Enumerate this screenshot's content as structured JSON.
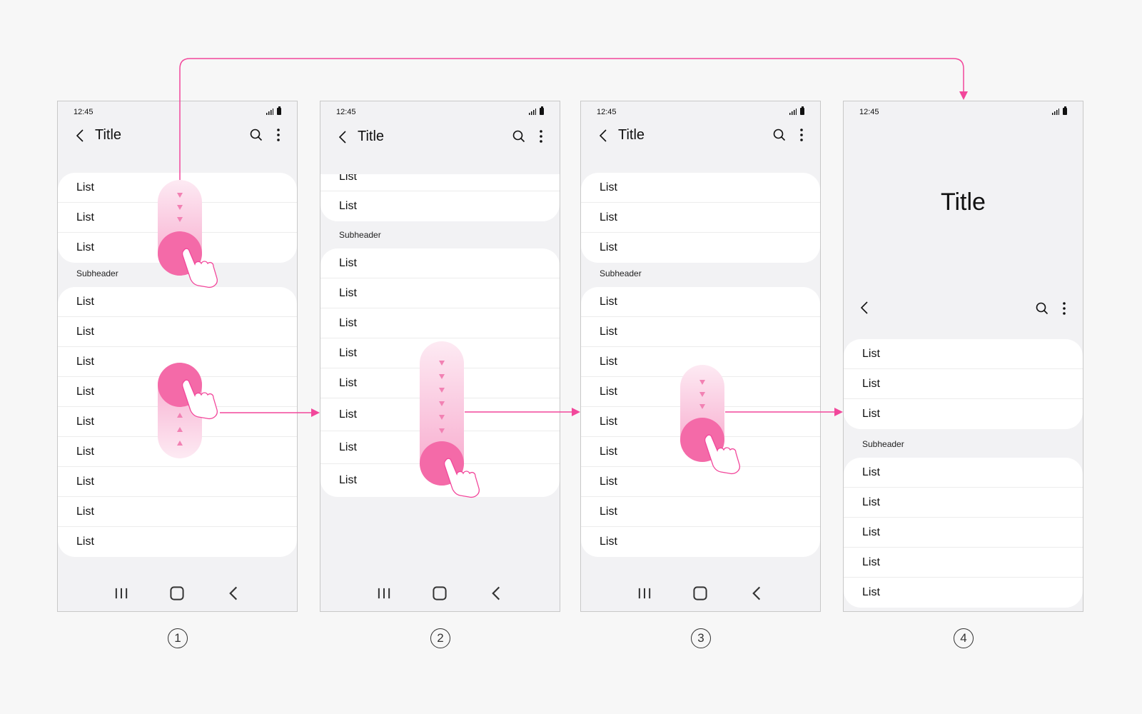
{
  "status": {
    "time": "12:45"
  },
  "appbar": {
    "title": "Title"
  },
  "list_label": "List",
  "subheader": "Subheader",
  "phone4": {
    "large_title": "Title"
  },
  "steps": [
    "1",
    "2",
    "3",
    "4"
  ],
  "colors": {
    "accent": "#f2479b",
    "pill_dark": "#f46aa8",
    "pill_light": "#fdeaf3",
    "list_bg": "#ffffff",
    "screen_bg": "#f2f2f4"
  },
  "icons": [
    "back-icon",
    "search-icon",
    "more-icon",
    "recents-icon",
    "home-icon",
    "nav-back-icon",
    "signal-icon",
    "battery-icon",
    "hand-pointer-icon"
  ]
}
